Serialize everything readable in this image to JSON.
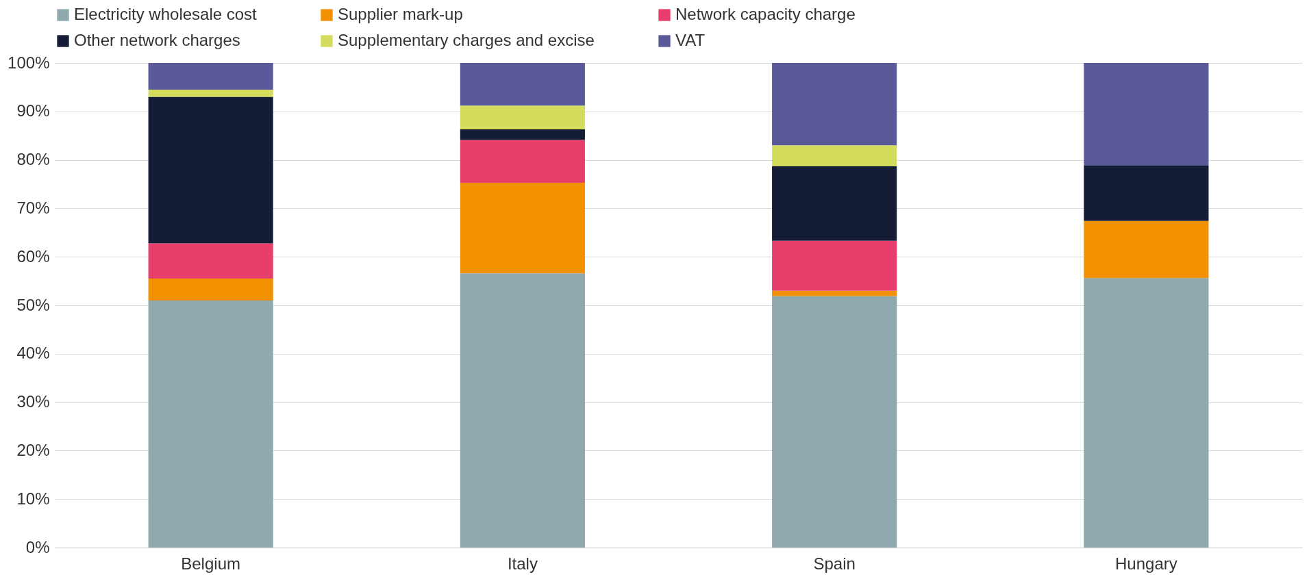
{
  "chart_data": {
    "type": "bar",
    "stacked": true,
    "categories": [
      "Belgium",
      "Italy",
      "Spain",
      "Hungary"
    ],
    "series": [
      {
        "name": "Electricity wholesale cost",
        "color": "#8fa8ad",
        "values": [
          51,
          56.6,
          51.9,
          55.6
        ]
      },
      {
        "name": "Supplier mark-up",
        "color": "#f29100",
        "values": [
          4.5,
          18.7,
          1.1,
          11.8
        ]
      },
      {
        "name": "Network capacity charge",
        "color": "#e83e6c",
        "values": [
          7.3,
          8.8,
          10.3,
          null
        ]
      },
      {
        "name": "Other network charges",
        "color": "#141d35",
        "values": [
          30.2,
          2.2,
          15.4,
          11.4
        ]
      },
      {
        "name": "Supplementary charges and excise",
        "color": "#d4dc5d",
        "values": [
          1.5,
          4.9,
          4.3,
          null
        ]
      },
      {
        "name": "VAT",
        "color": "#5a5a9a",
        "values": [
          5.5,
          8.8,
          17,
          21.2
        ]
      }
    ],
    "ylim": [
      0,
      100
    ],
    "yticks": [
      {
        "value": 0,
        "label": "0%"
      },
      {
        "value": 10,
        "label": "10%"
      },
      {
        "value": 20,
        "label": "20%"
      },
      {
        "value": 30,
        "label": "30%"
      },
      {
        "value": 40,
        "label": "40%"
      },
      {
        "value": 50,
        "label": "50%"
      },
      {
        "value": 60,
        "label": "60%"
      },
      {
        "value": 70,
        "label": "70%"
      },
      {
        "value": 80,
        "label": "80%"
      },
      {
        "value": 90,
        "label": "90%"
      },
      {
        "value": 100,
        "label": "100%"
      }
    ],
    "grid": "y",
    "legend": "top"
  }
}
